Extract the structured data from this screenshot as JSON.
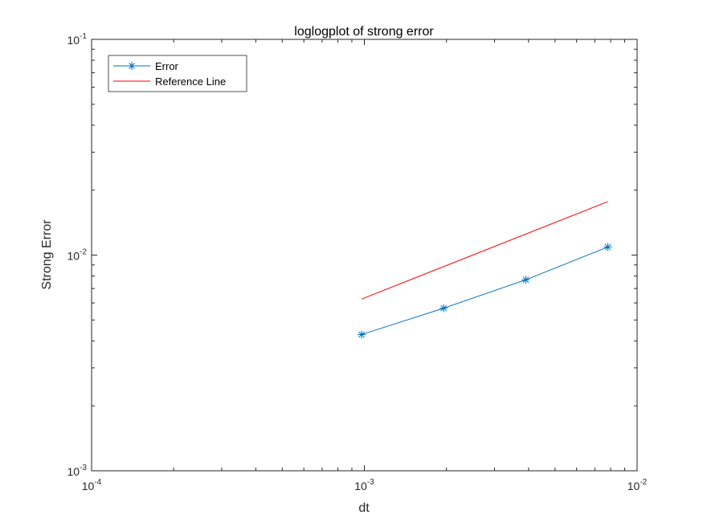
{
  "chart_data": {
    "type": "line",
    "title": "loglogplot of strong error",
    "xlabel": "dt",
    "ylabel": "Strong Error",
    "xscale": "log",
    "yscale": "log",
    "xlim": [
      0.0001,
      0.01
    ],
    "ylim": [
      0.001,
      0.1
    ],
    "grid": false,
    "legend_position": "top-left",
    "x_ticks": [
      {
        "value": 0.0001,
        "base": "10",
        "exp": "-4"
      },
      {
        "value": 0.001,
        "base": "10",
        "exp": "-3"
      },
      {
        "value": 0.01,
        "base": "10",
        "exp": "-2"
      }
    ],
    "y_ticks": [
      {
        "value": 0.001,
        "base": "10",
        "exp": "-3"
      },
      {
        "value": 0.01,
        "base": "10",
        "exp": "-2"
      },
      {
        "value": 0.1,
        "base": "10",
        "exp": "-1"
      }
    ],
    "series": [
      {
        "name": "Error",
        "color": "#0072BD",
        "marker": "asterisk",
        "x": [
          0.0009766,
          0.001953,
          0.003906,
          0.0078125
        ],
        "y": [
          0.00428,
          0.00567,
          0.00768,
          0.0109
        ]
      },
      {
        "name": "Reference Line",
        "color": "#FF0000",
        "marker": "none",
        "x": [
          0.0009766,
          0.0078125
        ],
        "y": [
          0.00625,
          0.0177
        ]
      }
    ]
  }
}
